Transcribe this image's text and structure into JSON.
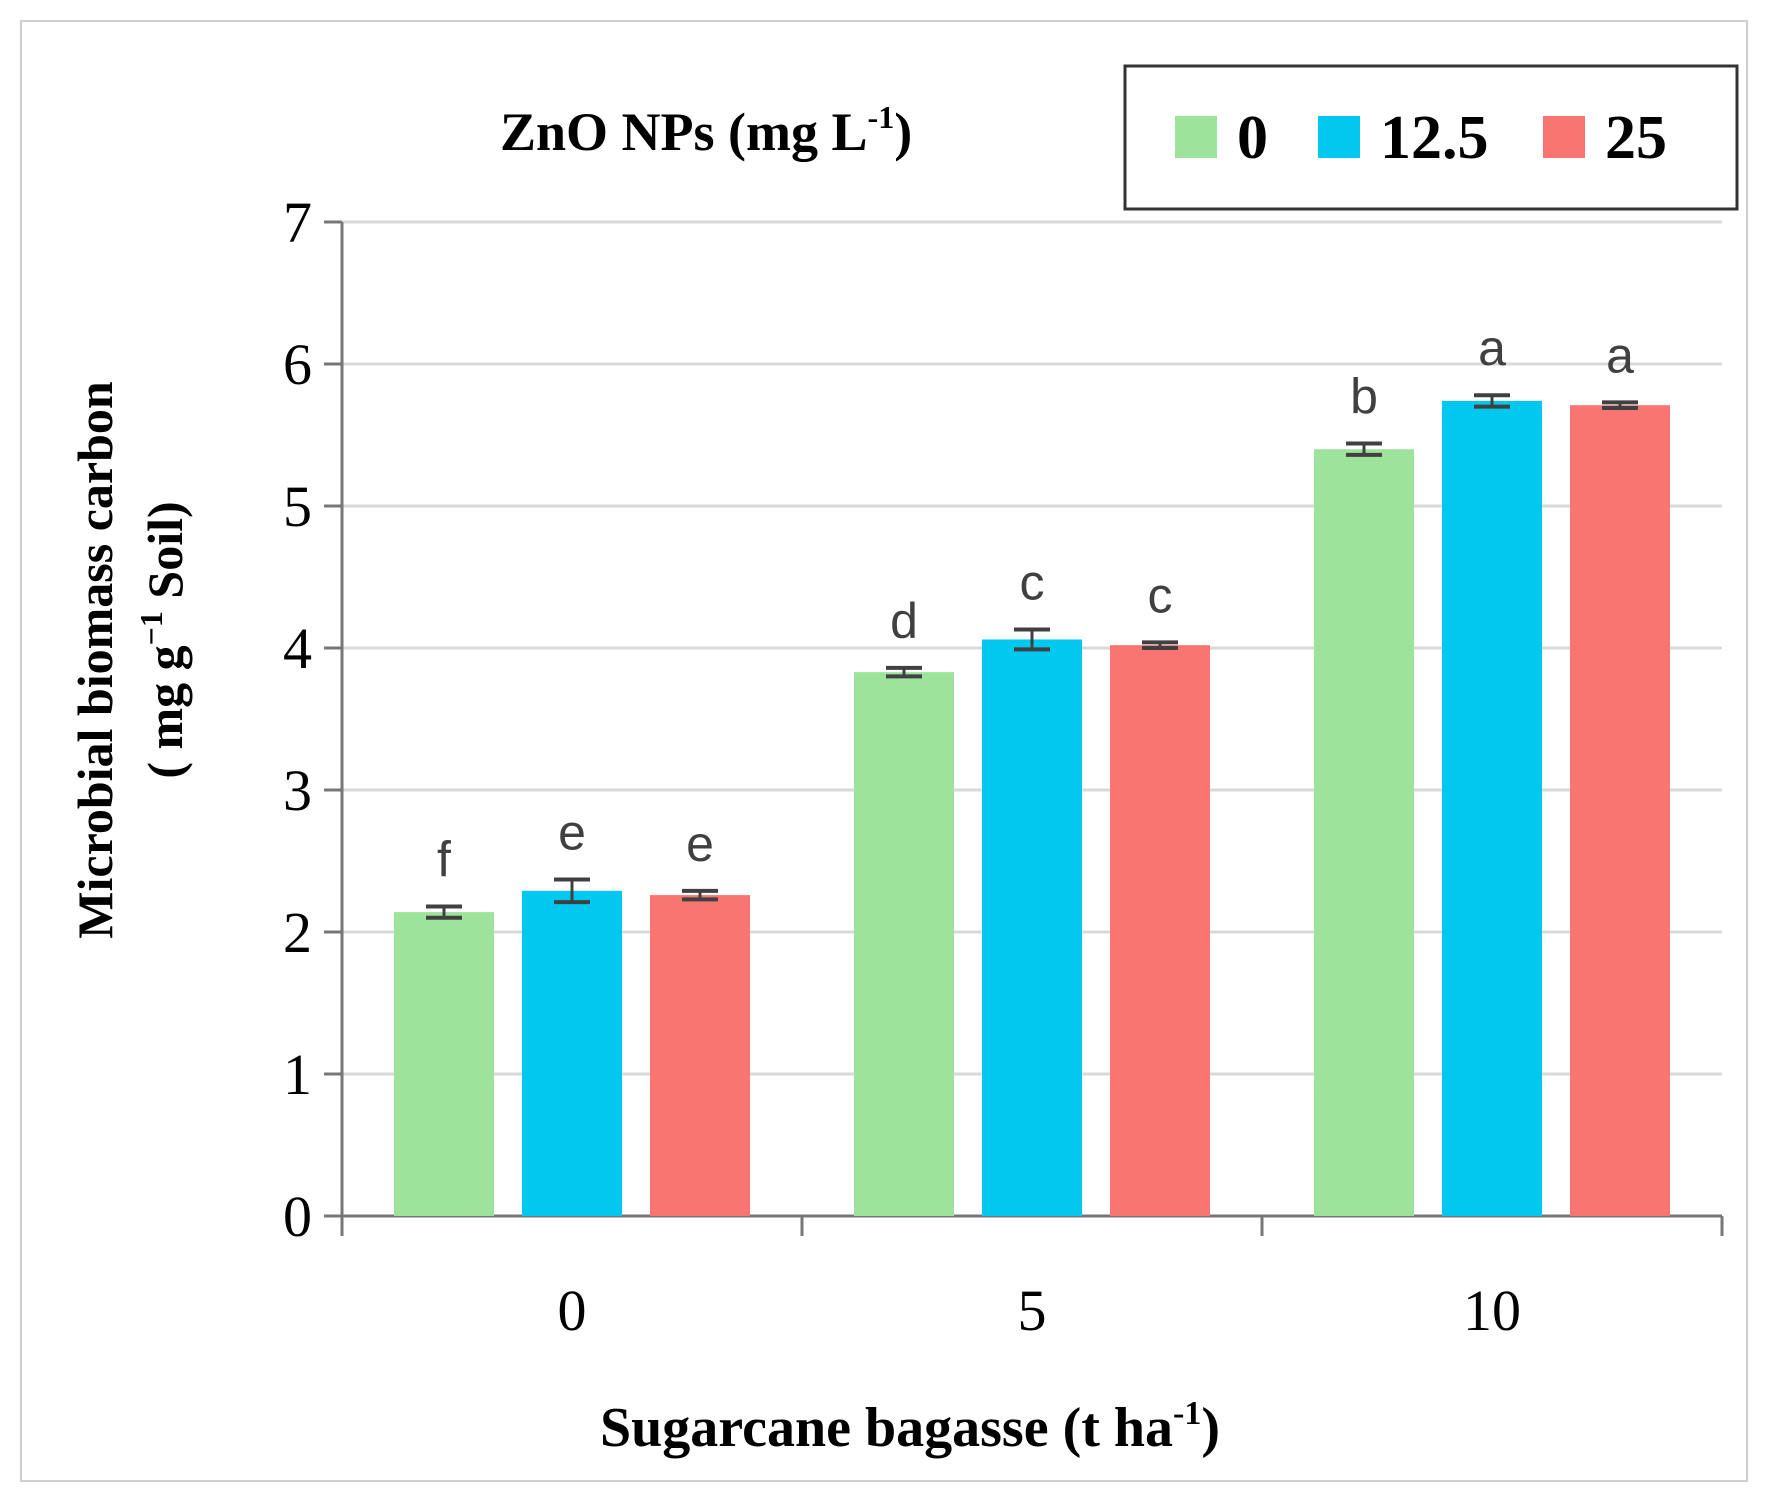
{
  "chart_data": {
    "type": "bar",
    "legend_title_main": "ZnO NPs (mg L",
    "legend_title_sup": "-1",
    "legend_title_end": ")",
    "legend_position": "top-right",
    "xlabel_main": "Sugarcane bagasse (t ha",
    "xlabel_sup": "-1",
    "xlabel_end": ")",
    "ylabel_line1": "Microbial biomass carbon",
    "ylabel_line2_a": "( mg g",
    "ylabel_line2_sup": "−1",
    "ylabel_line2_b": " Soil)",
    "categories": [
      "0",
      "5",
      "10"
    ],
    "ylim": [
      0,
      7
    ],
    "yticks": [
      "0",
      "1",
      "2",
      "3",
      "4",
      "5",
      "6",
      "7"
    ],
    "grid": true,
    "series": [
      {
        "name": "0",
        "color": "#9ee39b",
        "values": [
          2.14,
          3.83,
          5.4
        ],
        "errors": [
          0.04,
          0.03,
          0.04
        ],
        "letters": [
          "f",
          "d",
          "b"
        ]
      },
      {
        "name": "12.5",
        "color": "#00c8ee",
        "values": [
          2.29,
          4.06,
          5.74
        ],
        "errors": [
          0.08,
          0.07,
          0.04
        ],
        "letters": [
          "e",
          "c",
          "a"
        ]
      },
      {
        "name": "25",
        "color": "#f87572",
        "values": [
          2.26,
          4.02,
          5.71
        ],
        "errors": [
          0.03,
          0.02,
          0.02
        ],
        "letters": [
          "e",
          "c",
          "a"
        ]
      }
    ]
  }
}
